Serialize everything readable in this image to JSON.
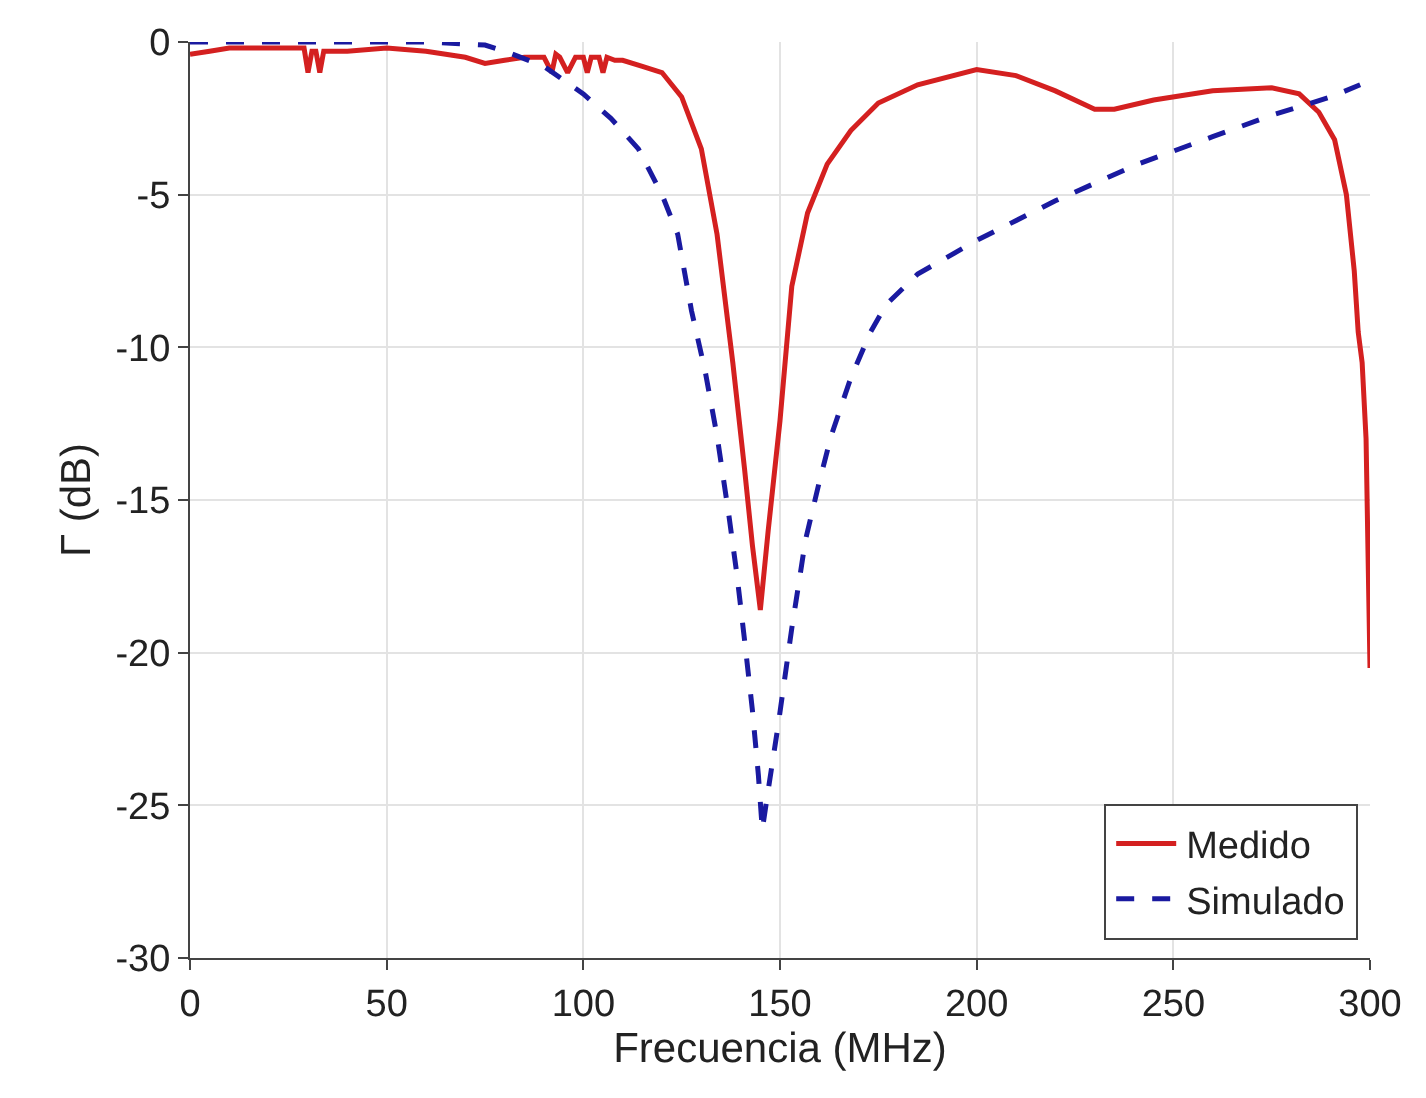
{
  "chart_data": {
    "type": "line",
    "xlabel": "Frecuencia (MHz)",
    "ylabel": "Γ (dB)",
    "xlim": [
      0,
      300
    ],
    "xticks": [
      0,
      50,
      100,
      150,
      200,
      250,
      300
    ],
    "ylim": [
      -30,
      0
    ],
    "yticks": [
      -30,
      -25,
      -20,
      -15,
      -10,
      -5,
      0
    ],
    "grid": true,
    "legend": "bottom right",
    "marker": "none",
    "series": [
      {
        "name": "Medido",
        "color": "#d42020",
        "line_style": "solid",
        "x": [
          0,
          5,
          10,
          20,
          29,
          30,
          31,
          32,
          33,
          34,
          35,
          40,
          50,
          60,
          70,
          75,
          80,
          85,
          90,
          92,
          93,
          94,
          96,
          98,
          100,
          101,
          102,
          104,
          105,
          106,
          108,
          110,
          115,
          120,
          125,
          130,
          134,
          138,
          141,
          143,
          145,
          147,
          150,
          153,
          157,
          162,
          168,
          175,
          185,
          200,
          210,
          220,
          230,
          235,
          245,
          260,
          275,
          282,
          287,
          291,
          294,
          296,
          297,
          298,
          299,
          300
        ],
        "values": [
          -0.4,
          -0.3,
          -0.2,
          -0.2,
          -0.2,
          -1.0,
          -0.3,
          -0.3,
          -1.0,
          -0.3,
          -0.3,
          -0.3,
          -0.2,
          -0.3,
          -0.5,
          -0.7,
          -0.6,
          -0.5,
          -0.5,
          -1.0,
          -0.4,
          -0.5,
          -1.0,
          -0.5,
          -0.5,
          -1.0,
          -0.5,
          -0.5,
          -1.0,
          -0.5,
          -0.6,
          -0.6,
          -0.8,
          -1.0,
          -1.8,
          -3.5,
          -6.3,
          -10.5,
          -14.0,
          -16.5,
          -18.6,
          -16.0,
          -12.4,
          -8.0,
          -5.6,
          -4.0,
          -2.9,
          -2.0,
          -1.4,
          -0.9,
          -1.1,
          -1.6,
          -2.2,
          -2.2,
          -1.9,
          -1.6,
          -1.5,
          -1.7,
          -2.3,
          -3.2,
          -5.0,
          -7.5,
          -9.5,
          -10.5,
          -13.0,
          -20.5
        ]
      },
      {
        "name": "Simulado",
        "color": "#1a1aa0",
        "line_style": "dashed",
        "x": [
          0,
          20,
          40,
          60,
          75,
          80,
          90,
          100,
          107,
          114,
          120,
          124,
          127.5,
          131,
          134,
          137,
          139,
          141,
          143,
          144.5,
          145.5,
          147,
          149.5,
          153,
          156.5,
          160,
          163,
          168,
          173,
          177,
          185,
          200,
          220,
          241,
          260,
          275,
          290,
          297.5
        ],
        "values": [
          0,
          0,
          0,
          0,
          -0.1,
          -0.3,
          -0.8,
          -1.7,
          -2.5,
          -3.5,
          -5.0,
          -6.3,
          -8.8,
          -10.8,
          -12.9,
          -15.5,
          -17.4,
          -19.6,
          -21.9,
          -24.0,
          -25.8,
          -24.5,
          -22.4,
          -19.2,
          -16.3,
          -14.4,
          -12.9,
          -11.0,
          -9.5,
          -8.6,
          -7.6,
          -6.5,
          -5.2,
          -4.0,
          -3.1,
          -2.4,
          -1.8,
          -1.4
        ]
      }
    ]
  }
}
